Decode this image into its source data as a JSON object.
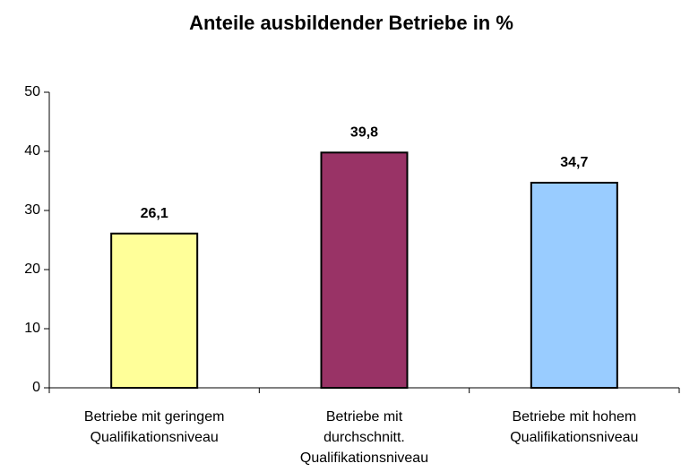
{
  "chart_data": {
    "type": "bar",
    "title": "Anteile ausbildender Betriebe in %",
    "categories": [
      [
        "Betriebe mit geringem",
        "Qualifikationsniveau"
      ],
      [
        "Betriebe mit",
        "durchschnitt.",
        "Qualifikationsniveau"
      ],
      [
        "Betriebe mit hohem",
        "Qualifikationsniveau"
      ]
    ],
    "values": [
      26.1,
      39.8,
      34.7
    ],
    "value_labels": [
      "26,1",
      "39,8",
      "34,7"
    ],
    "colors": [
      "#ffff99",
      "#993366",
      "#99ccff"
    ],
    "ylim": [
      0,
      50
    ],
    "yticks": [
      0,
      10,
      20,
      30,
      40,
      50
    ],
    "grid": false
  }
}
